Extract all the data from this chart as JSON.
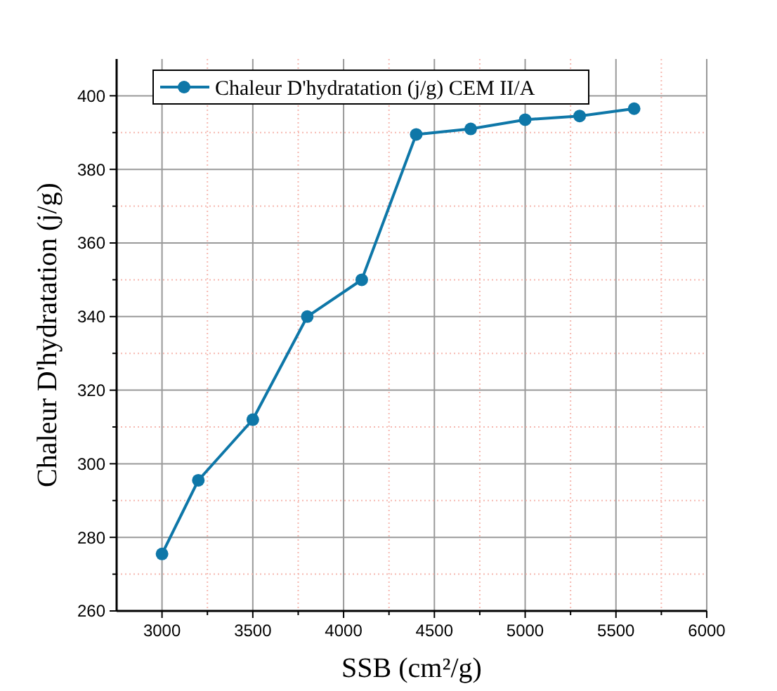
{
  "chart_data": {
    "type": "line",
    "xlabel": "SSB (cm²/g)",
    "ylabel": "Chaleur D'hydratation (j/g)",
    "x": [
      3000,
      3200,
      3500,
      3800,
      4100,
      4400,
      4700,
      5000,
      5300,
      5600
    ],
    "series": [
      {
        "name": "Chaleur D'hydratation (j/g) CEM II/A",
        "color": "#0e77a8",
        "values": [
          275.5,
          295.5,
          312,
          340,
          350,
          389.5,
          391,
          393.5,
          394.5,
          396.5
        ]
      }
    ],
    "xlim": [
      2750,
      6000
    ],
    "ylim": [
      260,
      410
    ],
    "xticks": [
      3000,
      {
        "value": 3250,
        "label": null
      },
      3500,
      {
        "value": 3750,
        "label": null
      },
      4000,
      {
        "value": 4250,
        "label": null
      },
      4500,
      {
        "value": 4750,
        "label": null
      },
      5000,
      {
        "value": 5250,
        "label": null
      },
      5500,
      {
        "value": 5750,
        "label": null
      },
      6000
    ],
    "yticks": [
      260,
      {
        "value": 270,
        "label": null
      },
      280,
      {
        "value": 290,
        "label": null
      },
      300,
      {
        "value": 310,
        "label": null
      },
      320,
      {
        "value": 330,
        "label": null
      },
      340,
      {
        "value": 350,
        "label": null
      },
      360,
      {
        "value": 370,
        "label": null
      },
      380,
      {
        "value": 390,
        "label": null
      },
      400
    ],
    "grid": true,
    "legend": "top left",
    "marker": "circle",
    "line_style": "solid"
  }
}
